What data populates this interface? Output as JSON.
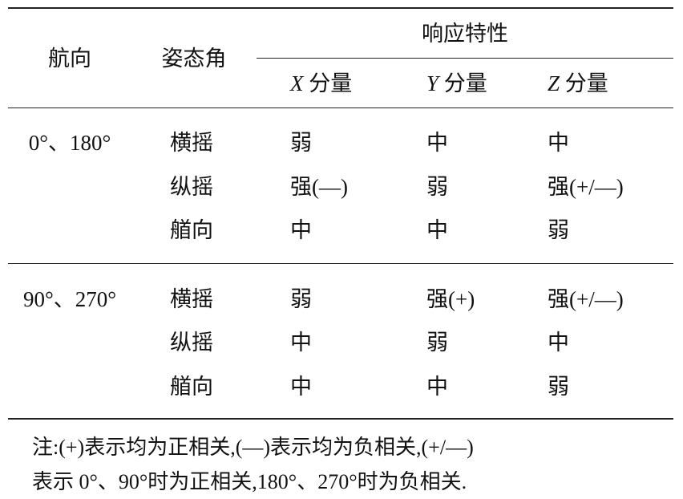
{
  "header": {
    "heading": "航向",
    "attitude": "姿态角",
    "response": "响应特性",
    "components": [
      {
        "axis": "X",
        "label": "分量"
      },
      {
        "axis": "Y",
        "label": "分量"
      },
      {
        "axis": "Z",
        "label": "分量"
      }
    ]
  },
  "groups": [
    {
      "heading": "0°、180°",
      "rows": [
        {
          "attitude": "横摇",
          "x": "弱",
          "y": "中",
          "z": "中"
        },
        {
          "attitude": "纵摇",
          "x": "强(—)",
          "y": "弱",
          "z": "强(+/—)"
        },
        {
          "attitude": "艏向",
          "x": "中",
          "y": "中",
          "z": "弱"
        }
      ]
    },
    {
      "heading": "90°、270°",
      "rows": [
        {
          "attitude": "横摇",
          "x": "弱",
          "y": "强(+)",
          "z": "强(+/—)"
        },
        {
          "attitude": "纵摇",
          "x": "中",
          "y": "弱",
          "z": "中"
        },
        {
          "attitude": "艏向",
          "x": "中",
          "y": "中",
          "z": "弱"
        }
      ]
    }
  ],
  "note": {
    "line1": "注:(+)表示均为正相关,(—)表示均为负相关,(+/—)",
    "line2": "表示 0°、90°时为正相关,180°、270°时为负相关."
  }
}
